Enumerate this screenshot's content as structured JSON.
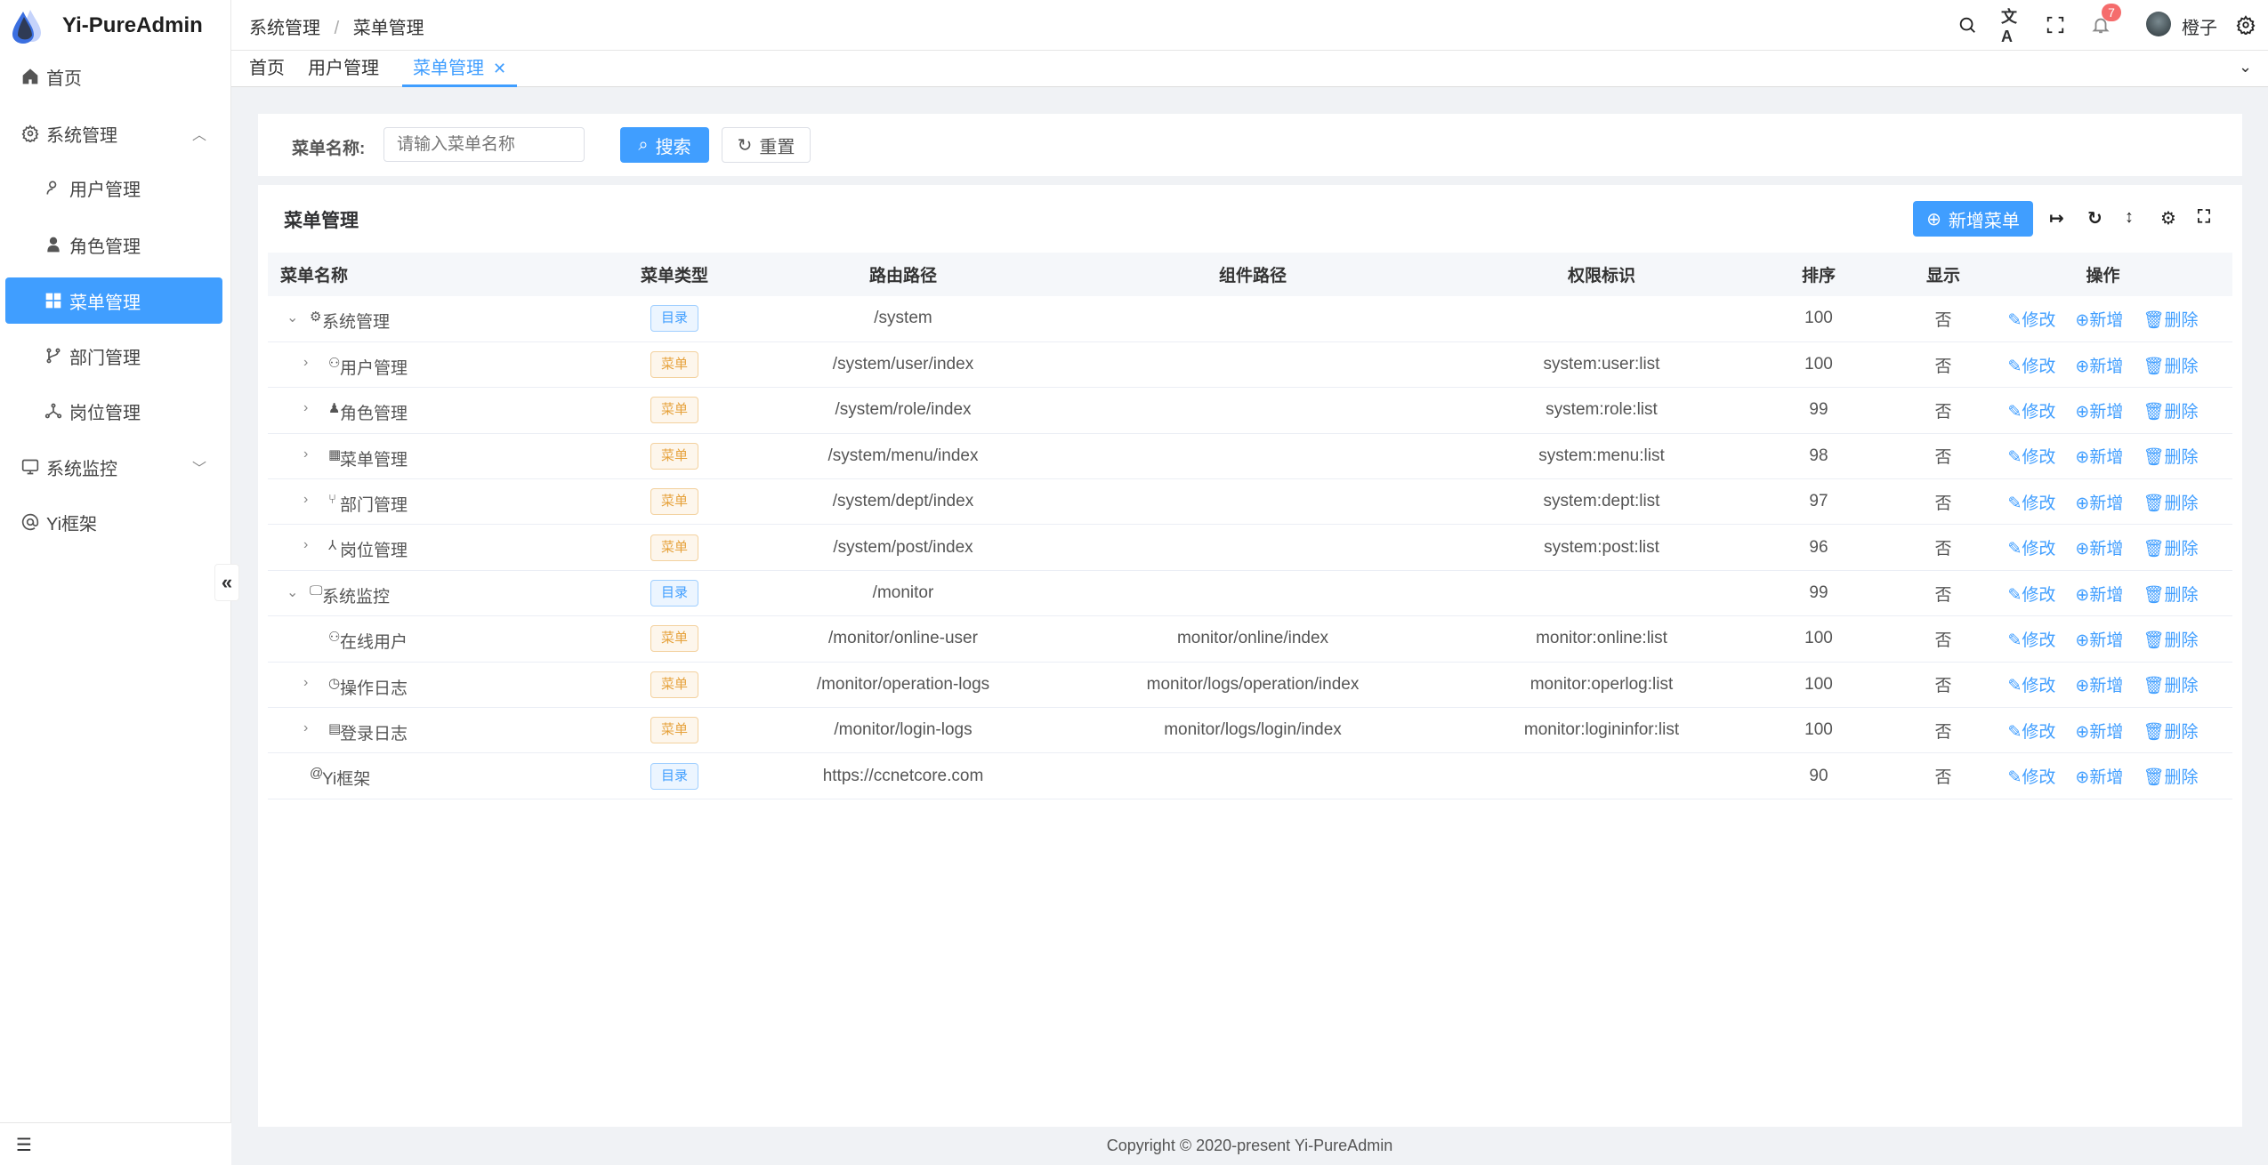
{
  "app": {
    "title": "Yi-PureAdmin"
  },
  "sidebar": {
    "items": [
      {
        "label": "首页",
        "icon": "home-icon"
      },
      {
        "label": "系统管理",
        "icon": "gear-icon",
        "expanded": true
      },
      {
        "label": "用户管理",
        "icon": "user-icon"
      },
      {
        "label": "角色管理",
        "icon": "role-icon"
      },
      {
        "label": "菜单管理",
        "icon": "grid-icon",
        "active": true
      },
      {
        "label": "部门管理",
        "icon": "branch-icon"
      },
      {
        "label": "岗位管理",
        "icon": "network-icon"
      },
      {
        "label": "系统监控",
        "icon": "monitor-icon",
        "expanded": false
      },
      {
        "label": "Yi框架",
        "icon": "at-icon"
      }
    ]
  },
  "header": {
    "breadcrumb": [
      "系统管理",
      "菜单管理"
    ],
    "separator": "/",
    "notification_count": "7",
    "user_name": "橙子"
  },
  "tabs": [
    {
      "label": "首页"
    },
    {
      "label": "用户管理"
    },
    {
      "label": "菜单管理",
      "active": true
    }
  ],
  "search": {
    "label": "菜单名称:",
    "placeholder": "请输入菜单名称",
    "search_label": "搜索",
    "reset_label": "重置"
  },
  "table": {
    "title": "菜单管理",
    "add_label": "新增菜单",
    "columns": [
      "菜单名称",
      "菜单类型",
      "路由路径",
      "组件路径",
      "权限标识",
      "排序",
      "显示",
      "操作"
    ],
    "actions": {
      "edit": "修改",
      "add": "新增",
      "delete": "删除"
    },
    "rows": [
      {
        "name": "系统管理",
        "level": 0,
        "expander": "expanded",
        "icon": "⚙",
        "type": "目录",
        "kind": "dir",
        "path": "/system",
        "component": "",
        "perm": "",
        "sort": "100",
        "show": "否"
      },
      {
        "name": "用户管理",
        "level": 1,
        "expander": "collapsed",
        "icon": "⚇",
        "type": "菜单",
        "kind": "menu",
        "path": "/system/user/index",
        "component": "",
        "perm": "system:user:list",
        "sort": "100",
        "show": "否"
      },
      {
        "name": "角色管理",
        "level": 1,
        "expander": "collapsed",
        "icon": "♟",
        "type": "菜单",
        "kind": "menu",
        "path": "/system/role/index",
        "component": "",
        "perm": "system:role:list",
        "sort": "99",
        "show": "否"
      },
      {
        "name": "菜单管理",
        "level": 1,
        "expander": "collapsed",
        "icon": "▦",
        "type": "菜单",
        "kind": "menu",
        "path": "/system/menu/index",
        "component": "",
        "perm": "system:menu:list",
        "sort": "98",
        "show": "否"
      },
      {
        "name": "部门管理",
        "level": 1,
        "expander": "collapsed",
        "icon": "⑂",
        "type": "菜单",
        "kind": "menu",
        "path": "/system/dept/index",
        "component": "",
        "perm": "system:dept:list",
        "sort": "97",
        "show": "否"
      },
      {
        "name": "岗位管理",
        "level": 1,
        "expander": "collapsed",
        "icon": "⅄",
        "type": "菜单",
        "kind": "menu",
        "path": "/system/post/index",
        "component": "",
        "perm": "system:post:list",
        "sort": "96",
        "show": "否"
      },
      {
        "name": "系统监控",
        "level": 0,
        "expander": "expanded",
        "icon": "🖵",
        "type": "目录",
        "kind": "dir",
        "path": "/monitor",
        "component": "",
        "perm": "",
        "sort": "99",
        "show": "否"
      },
      {
        "name": "在线用户",
        "level": 1,
        "expander": "",
        "icon": "⚇",
        "type": "菜单",
        "kind": "menu",
        "path": "/monitor/online-user",
        "component": "monitor/online/index",
        "perm": "monitor:online:list",
        "sort": "100",
        "show": "否"
      },
      {
        "name": "操作日志",
        "level": 1,
        "expander": "collapsed",
        "icon": "◷",
        "type": "菜单",
        "kind": "menu",
        "path": "/monitor/operation-logs",
        "component": "monitor/logs/operation/index",
        "perm": "monitor:operlog:list",
        "sort": "100",
        "show": "否"
      },
      {
        "name": "登录日志",
        "level": 1,
        "expander": "collapsed",
        "icon": "▤",
        "type": "菜单",
        "kind": "menu",
        "path": "/monitor/login-logs",
        "component": "monitor/logs/login/index",
        "perm": "monitor:logininfor:list",
        "sort": "100",
        "show": "否"
      },
      {
        "name": "Yi框架",
        "level": 0,
        "expander": "",
        "icon": "@",
        "type": "目录",
        "kind": "dir",
        "path": "https://ccnetcore.com",
        "component": "",
        "perm": "",
        "sort": "90",
        "show": "否"
      }
    ]
  },
  "footer": {
    "copyright": "Copyright © 2020-present Yi-PureAdmin"
  },
  "colors": {
    "primary": "#409eff",
    "warning": "#e6a23c",
    "badge": "#f56c6c"
  }
}
